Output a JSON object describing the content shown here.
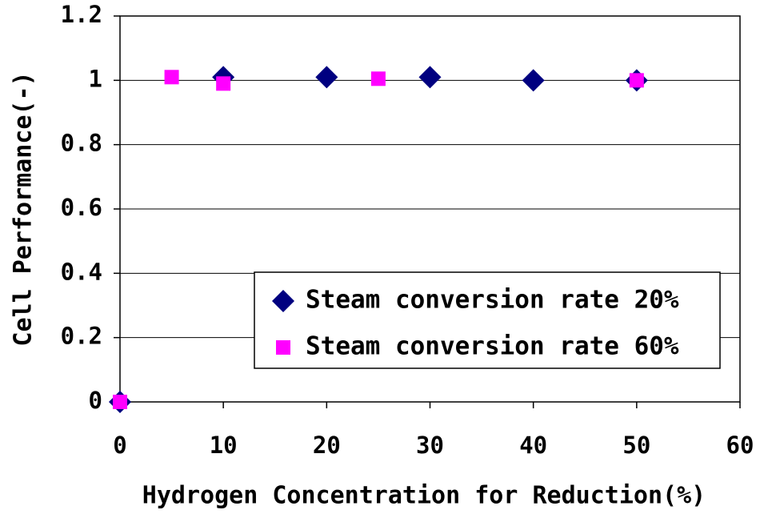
{
  "chart_data": {
    "type": "scatter",
    "xlabel": "Hydrogen Concentration for Reduction(%)",
    "ylabel": "Cell Performance(-)",
    "xlim": [
      0,
      60
    ],
    "xticks": [
      0,
      10,
      20,
      30,
      40,
      50,
      60
    ],
    "ylim": [
      0,
      1.2
    ],
    "yticks": [
      0,
      0.2,
      0.4,
      0.6,
      0.8,
      1,
      1.2
    ],
    "grid": true,
    "legend": "lower right",
    "series": [
      {
        "name": "Steam conversion rate 20%",
        "color": "#000080",
        "marker": "diamond",
        "x": [
          0,
          10,
          20,
          30,
          40,
          50
        ],
        "values": [
          0,
          1.01,
          1.01,
          1.01,
          1.0,
          1.0
        ]
      },
      {
        "name": "Steam conversion rate 60%",
        "color": "#ff00ff",
        "marker": "square",
        "x": [
          0,
          5,
          10,
          25,
          50
        ],
        "values": [
          0,
          1.01,
          0.99,
          1.005,
          1.0
        ]
      }
    ]
  }
}
